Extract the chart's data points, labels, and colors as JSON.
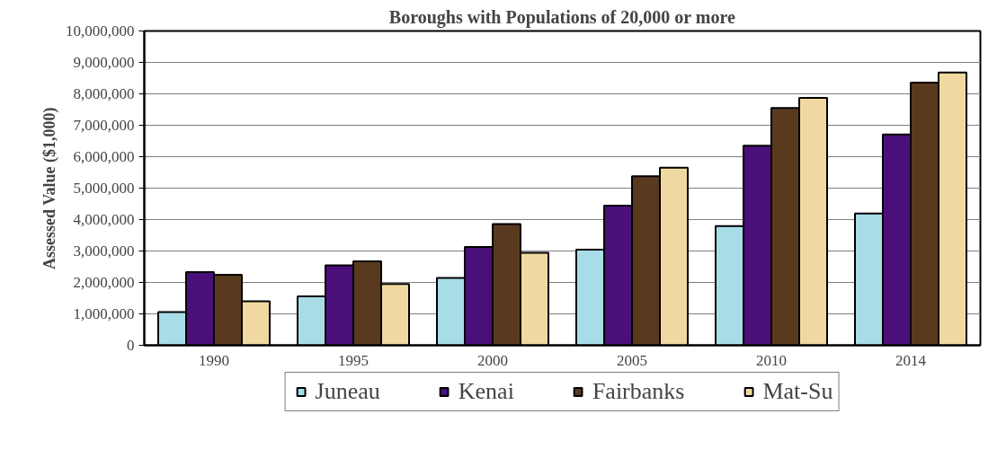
{
  "chart_data": {
    "type": "bar",
    "title": "Boroughs with Populations of 20,000 or more",
    "ylabel": "Assessed Value ($1,000)",
    "categories": [
      "1990",
      "1995",
      "2000",
      "2005",
      "2010",
      "2014"
    ],
    "series": [
      {
        "name": "Juneau",
        "color": "#a8dde8",
        "values": [
          1060000,
          1560000,
          2140000,
          3040000,
          3790000,
          4190000
        ]
      },
      {
        "name": "Kenai",
        "color": "#4b0f7a",
        "values": [
          2330000,
          2540000,
          3130000,
          4440000,
          6350000,
          6710000
        ]
      },
      {
        "name": "Fairbanks",
        "color": "#5a3a1e",
        "values": [
          2240000,
          2670000,
          3860000,
          5380000,
          7550000,
          8360000
        ]
      },
      {
        "name": "Mat-Su",
        "color": "#f0d9a0",
        "values": [
          1400000,
          1950000,
          2940000,
          5650000,
          7870000,
          8680000
        ]
      }
    ],
    "ylim": [
      0,
      10000000
    ],
    "yticks": [
      {
        "value": 0,
        "label": "0"
      },
      {
        "value": 1000000,
        "label": "1,000,000"
      },
      {
        "value": 2000000,
        "label": "2,000,000"
      },
      {
        "value": 3000000,
        "label": "3,000,000"
      },
      {
        "value": 4000000,
        "label": "4,000,000"
      },
      {
        "value": 5000000,
        "label": "5,000,000"
      },
      {
        "value": 6000000,
        "label": "6,000,000"
      },
      {
        "value": 7000000,
        "label": "7,000,000"
      },
      {
        "value": 8000000,
        "label": "8,000,000"
      },
      {
        "value": 9000000,
        "label": "9,000,000"
      },
      {
        "value": 10000000,
        "label": "10,000,000"
      }
    ],
    "grid": "y",
    "legend": "bottom"
  }
}
